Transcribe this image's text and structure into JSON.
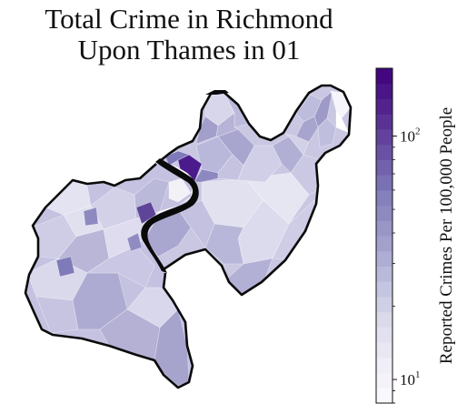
{
  "title": {
    "line1": "Total Crime in Richmond",
    "line2": "Upon Thames in 01"
  },
  "colorbar": {
    "label": "Reported Crimes Per 100,000 People",
    "scale": "log",
    "range": [
      8,
      190
    ],
    "ticks": [
      {
        "base": "10",
        "exp": "1",
        "value": 10
      },
      {
        "base": "10",
        "exp": "2",
        "value": 100
      }
    ],
    "colors": [
      "#fcfbfd",
      "#efedf5",
      "#dadaeb",
      "#bcbddc",
      "#9e9ac8",
      "#807dba",
      "#6a51a3",
      "#54278f",
      "#3f007d"
    ]
  },
  "map": {
    "region": "Richmond Upon Thames",
    "river": "Thames",
    "highest_value_area_color": "#4b1b8c"
  }
}
